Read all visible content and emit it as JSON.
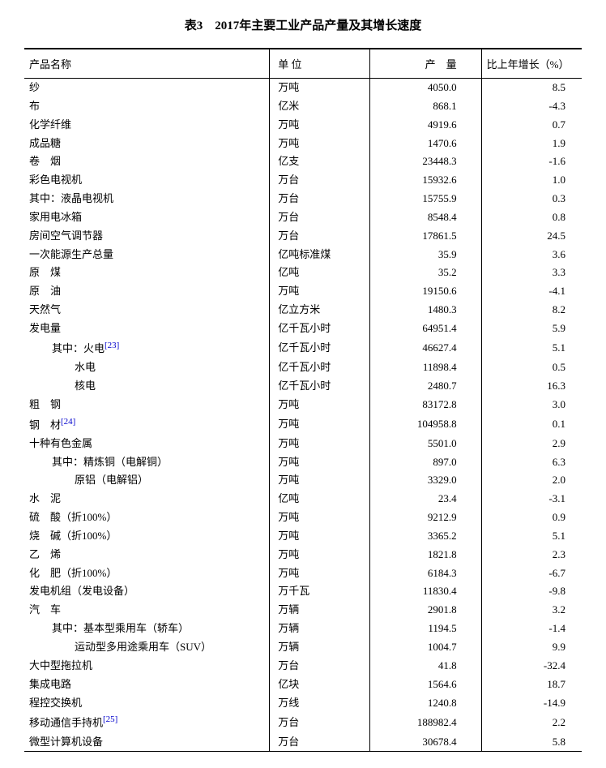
{
  "title": "表3　2017年主要工业产品产量及其增长速度",
  "columns": {
    "name": "产品名称",
    "unit": "单 位",
    "value": "产　量",
    "growth": "比上年增长（%）"
  },
  "rows": [
    {
      "name": "纱",
      "unit": "万吨",
      "value": "4050.0",
      "growth": "8.5",
      "indent": 0,
      "spaced": false,
      "sup": null
    },
    {
      "name": "布",
      "unit": "亿米",
      "value": "868.1",
      "growth": "-4.3",
      "indent": 0,
      "spaced": false,
      "sup": null
    },
    {
      "name": "化学纤维",
      "unit": "万吨",
      "value": "4919.6",
      "growth": "0.7",
      "indent": 0,
      "spaced": false,
      "sup": null
    },
    {
      "name": "成品糖",
      "unit": "万吨",
      "value": "1470.6",
      "growth": "1.9",
      "indent": 0,
      "spaced": false,
      "sup": null
    },
    {
      "name": "卷　烟",
      "unit": "亿支",
      "value": "23448.3",
      "growth": "-1.6",
      "indent": 0,
      "spaced": false,
      "sup": null
    },
    {
      "name": "彩色电视机",
      "unit": "万台",
      "value": "15932.6",
      "growth": "1.0",
      "indent": 0,
      "spaced": false,
      "sup": null
    },
    {
      "name": "其中：液晶电视机",
      "unit": "万台",
      "value": "15755.9",
      "growth": "0.3",
      "indent": 0,
      "spaced": false,
      "sup": null
    },
    {
      "name": "家用电冰箱",
      "unit": "万台",
      "value": "8548.4",
      "growth": "0.8",
      "indent": 0,
      "spaced": false,
      "sup": null
    },
    {
      "name": "房间空气调节器",
      "unit": "万台",
      "value": "17861.5",
      "growth": "24.5",
      "indent": 0,
      "spaced": false,
      "sup": null
    },
    {
      "name": "一次能源生产总量",
      "unit": "亿吨标准煤",
      "value": "35.9",
      "growth": "3.6",
      "indent": 0,
      "spaced": false,
      "sup": null
    },
    {
      "name": "原　煤",
      "unit": "亿吨",
      "value": "35.2",
      "growth": "3.3",
      "indent": 0,
      "spaced": false,
      "sup": null
    },
    {
      "name": "原　油",
      "unit": "万吨",
      "value": "19150.6",
      "growth": "-4.1",
      "indent": 0,
      "spaced": false,
      "sup": null
    },
    {
      "name": "天然气",
      "unit": "亿立方米",
      "value": "1480.3",
      "growth": "8.2",
      "indent": 0,
      "spaced": false,
      "sup": null
    },
    {
      "name": "发电量",
      "unit": "亿千瓦小时",
      "value": "64951.4",
      "growth": "5.9",
      "indent": 0,
      "spaced": false,
      "sup": null
    },
    {
      "name": "其中：火电",
      "unit": "亿千瓦小时",
      "value": "46627.4",
      "growth": "5.1",
      "indent": 1,
      "spaced": false,
      "sup": "[23]"
    },
    {
      "name": "水电",
      "unit": "亿千瓦小时",
      "value": "11898.4",
      "growth": "0.5",
      "indent": 2,
      "spaced": false,
      "sup": null
    },
    {
      "name": "核电",
      "unit": "亿千瓦小时",
      "value": "2480.7",
      "growth": "16.3",
      "indent": 2,
      "spaced": false,
      "sup": null
    },
    {
      "name": "粗　钢",
      "unit": "万吨",
      "value": "83172.8",
      "growth": "3.0",
      "indent": 0,
      "spaced": false,
      "sup": null
    },
    {
      "name": "钢　材",
      "unit": "万吨",
      "value": "104958.8",
      "growth": "0.1",
      "indent": 0,
      "spaced": false,
      "sup": "[24]"
    },
    {
      "name": "十种有色金属",
      "unit": "万吨",
      "value": "5501.0",
      "growth": "2.9",
      "indent": 0,
      "spaced": false,
      "sup": null
    },
    {
      "name": "其中：精炼铜（电解铜）",
      "unit": "万吨",
      "value": "897.0",
      "growth": "6.3",
      "indent": 1,
      "spaced": false,
      "sup": null
    },
    {
      "name": "原铝（电解铝）",
      "unit": "万吨",
      "value": "3329.0",
      "growth": "2.0",
      "indent": 2,
      "spaced": false,
      "sup": null
    },
    {
      "name": "水　泥",
      "unit": "亿吨",
      "value": "23.4",
      "growth": "-3.1",
      "indent": 0,
      "spaced": false,
      "sup": null
    },
    {
      "name": "硫　酸（折100%）",
      "unit": "万吨",
      "value": "9212.9",
      "growth": "0.9",
      "indent": 0,
      "spaced": false,
      "sup": null
    },
    {
      "name": "烧　碱（折100%）",
      "unit": "万吨",
      "value": "3365.2",
      "growth": "5.1",
      "indent": 0,
      "spaced": false,
      "sup": null
    },
    {
      "name": "乙　烯",
      "unit": "万吨",
      "value": "1821.8",
      "growth": "2.3",
      "indent": 0,
      "spaced": false,
      "sup": null
    },
    {
      "name": "化　肥（折100%）",
      "unit": "万吨",
      "value": "6184.3",
      "growth": "-6.7",
      "indent": 0,
      "spaced": false,
      "sup": null
    },
    {
      "name": "发电机组（发电设备）",
      "unit": "万千瓦",
      "value": "11830.4",
      "growth": "-9.8",
      "indent": 0,
      "spaced": false,
      "sup": null
    },
    {
      "name": "汽　车",
      "unit": "万辆",
      "value": "2901.8",
      "growth": "3.2",
      "indent": 0,
      "spaced": false,
      "sup": null
    },
    {
      "name": "其中：基本型乘用车（轿车）",
      "unit": "万辆",
      "value": "1194.5",
      "growth": "-1.4",
      "indent": 1,
      "spaced": false,
      "sup": null
    },
    {
      "name": "运动型多用途乘用车（SUV）",
      "unit": "万辆",
      "value": "1004.7",
      "growth": "9.9",
      "indent": 2,
      "spaced": false,
      "sup": null
    },
    {
      "name": "大中型拖拉机",
      "unit": "万台",
      "value": "41.8",
      "growth": "-32.4",
      "indent": 0,
      "spaced": false,
      "sup": null
    },
    {
      "name": "集成电路",
      "unit": "亿块",
      "value": "1564.6",
      "growth": "18.7",
      "indent": 0,
      "spaced": false,
      "sup": null
    },
    {
      "name": "程控交换机",
      "unit": "万线",
      "value": "1240.8",
      "growth": "-14.9",
      "indent": 0,
      "spaced": false,
      "sup": null
    },
    {
      "name": "移动通信手持机",
      "unit": "万台",
      "value": "188982.4",
      "growth": "2.2",
      "indent": 0,
      "spaced": false,
      "sup": "[25]"
    },
    {
      "name": "微型计算机设备",
      "unit": "万台",
      "value": "30678.4",
      "growth": "5.8",
      "indent": 0,
      "spaced": false,
      "sup": null
    }
  ],
  "styling": {
    "font_family": "SimSun",
    "title_fontsize": 15,
    "body_fontsize": 13,
    "text_color": "#000000",
    "sup_color": "#0000cc",
    "border_color": "#000000",
    "top_border_width": 2,
    "inner_border_width": 1,
    "background_color": "#ffffff"
  }
}
